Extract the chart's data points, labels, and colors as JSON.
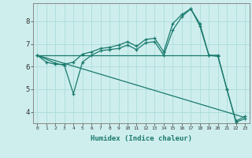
{
  "xlabel": "Humidex (Indice chaleur)",
  "background_color": "#ceeeed",
  "grid_color": "#b0dede",
  "line_color": "#1a7a6e",
  "xlim": [
    -0.5,
    23.5
  ],
  "ylim": [
    3.5,
    8.8
  ],
  "xticks": [
    0,
    1,
    2,
    3,
    4,
    5,
    6,
    7,
    8,
    9,
    10,
    11,
    12,
    13,
    14,
    15,
    16,
    17,
    18,
    19,
    20,
    21,
    22,
    23
  ],
  "yticks": [
    4,
    5,
    6,
    7,
    8
  ],
  "line1_x": [
    0,
    1,
    2,
    3,
    4,
    5,
    6,
    7,
    8,
    9,
    10,
    11,
    12,
    13,
    14,
    15,
    16,
    17,
    18,
    19,
    20,
    21,
    22,
    23
  ],
  "line1_y": [
    6.5,
    6.2,
    6.1,
    6.1,
    6.2,
    6.55,
    6.65,
    6.8,
    6.85,
    6.95,
    7.1,
    6.9,
    7.2,
    7.25,
    6.65,
    7.9,
    8.3,
    8.55,
    7.9,
    6.5,
    6.5,
    5.0,
    3.6,
    3.8
  ],
  "line2_x": [
    0,
    2,
    3,
    4,
    5,
    6,
    7,
    8,
    9,
    10,
    11,
    12,
    13,
    14,
    15,
    16,
    17,
    18,
    19,
    20,
    21,
    22,
    23
  ],
  "line2_y": [
    6.5,
    6.15,
    6.05,
    4.8,
    6.2,
    6.5,
    6.7,
    6.75,
    6.8,
    6.95,
    6.75,
    7.05,
    7.1,
    6.5,
    7.6,
    8.2,
    8.55,
    7.8,
    6.5,
    6.45,
    5.0,
    3.55,
    3.7
  ],
  "line3_x": [
    0,
    20
  ],
  "line3_y": [
    6.5,
    6.5
  ],
  "line4_x": [
    0,
    23
  ],
  "line4_y": [
    6.5,
    3.75
  ]
}
